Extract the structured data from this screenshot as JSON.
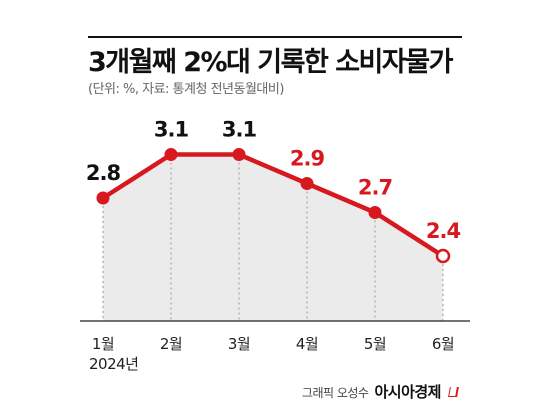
{
  "header": {
    "title": "3개월째 2%대 기록한 소비자물가",
    "subtitle": "(단위: %, 자료: 통계청 전년동월대비)"
  },
  "chart_data": {
    "type": "line",
    "categories": [
      "1월",
      "2월",
      "3월",
      "4월",
      "5월",
      "6월"
    ],
    "x_year_label": "2024년",
    "values": [
      2.8,
      3.1,
      3.1,
      2.9,
      2.7,
      2.4
    ],
    "value_labels": [
      "2.8",
      "3.1",
      "3.1",
      "2.9",
      "2.7",
      "2.4"
    ],
    "title": "3개월째 2%대 기록한 소비자물가",
    "subtitle": "(단위: %, 자료: 통계청 전년동월대비)",
    "xlabel": "",
    "ylabel": "",
    "ylim": [
      1.5,
      3.2
    ],
    "grid": "vertical-dotted",
    "legend": "none",
    "colors": {
      "line": "#d7191f",
      "label_highlight": "#d7191f",
      "label_default": "#111111",
      "area_fill": "#ebebeb"
    }
  },
  "credit": {
    "author": "그래픽 오성수",
    "brand": "아시아경제"
  }
}
